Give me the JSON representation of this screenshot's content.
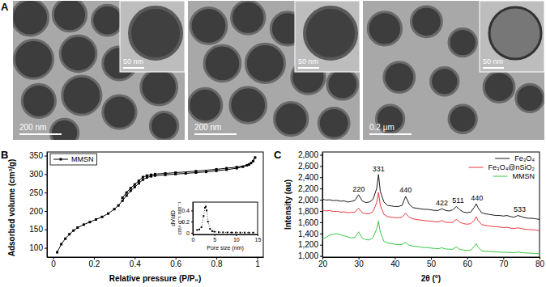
{
  "panel_labels": [
    "A",
    "B",
    "C"
  ],
  "micrographs": {
    "images": [
      {
        "scale_bar": "200 nm",
        "inset_scale_bar": "50 nm"
      },
      {
        "scale_bar": "200 nm",
        "inset_scale_bar": "50 nm"
      },
      {
        "scale_bar": "0.2 μm",
        "inset_scale_bar": "50 nm"
      }
    ]
  },
  "chart_data": [
    {
      "type": "line",
      "xlabel": "Relative pressure (P/P₀)",
      "ylabel": "Adsorbed volume (cm³/g)",
      "x": [
        0.02,
        0.04,
        0.06,
        0.08,
        0.1,
        0.12,
        0.15,
        0.18,
        0.21,
        0.24,
        0.27,
        0.3,
        0.32,
        0.34,
        0.36,
        0.38,
        0.4,
        0.42,
        0.44,
        0.46,
        0.48,
        0.5,
        0.55,
        0.6,
        0.65,
        0.7,
        0.75,
        0.8,
        0.85,
        0.9,
        0.93,
        0.96,
        0.98,
        0.99,
        0.97,
        0.95,
        0.9,
        0.85,
        0.8,
        0.7,
        0.6,
        0.55,
        0.5,
        0.48,
        0.46,
        0.44,
        0.42,
        0.4,
        0.38,
        0.36,
        0.34
      ],
      "series": [
        {
          "name": "MMSN",
          "color": "#000000",
          "marker": "square",
          "line_style": "solid",
          "values": [
            88,
            110,
            125,
            137,
            147,
            155,
            163,
            170,
            177,
            184,
            193,
            205,
            215,
            228,
            242,
            255,
            265,
            275,
            285,
            291,
            294,
            296,
            298,
            300,
            302,
            304,
            306,
            309,
            312,
            316,
            320,
            326,
            335,
            345,
            330,
            324,
            319,
            316,
            313,
            308,
            304,
            302,
            300,
            298,
            296,
            292,
            282,
            272,
            262,
            250,
            236
          ]
        }
      ],
      "xlim": [
        -0.03,
        1.03
      ],
      "ylim": [
        75,
        360
      ],
      "xticks": [
        0,
        0.2,
        0.4,
        0.6,
        0.8,
        1
      ],
      "yticks": [
        100,
        150,
        200,
        250,
        300,
        350
      ],
      "legend": "upper left",
      "grid": false
    },
    {
      "type": "line",
      "xlabel": "Pore size (nm)",
      "ylabel": [
        "dV/dD",
        "cm³ g⁻¹ nm⁻¹"
      ],
      "x": [
        1,
        1.5,
        2,
        2.5,
        2.8,
        3,
        3.2,
        3.5,
        4,
        4.5,
        5,
        6,
        7,
        8,
        9,
        10,
        11,
        12,
        13,
        14
      ],
      "series": [
        {
          "color": "#000000",
          "marker": "square",
          "line_style": "dotted",
          "values": [
            0.05,
            0.06,
            0.1,
            0.3,
            0.45,
            0.47,
            0.4,
            0.2,
            0.07,
            0.03,
            0.02,
            0.01,
            0.008,
            0.006,
            0.005,
            0.005,
            0.004,
            0.004,
            0.003,
            0.003
          ]
        }
      ],
      "xlim": [
        0,
        15
      ],
      "ylim": [
        -0.03,
        0.55
      ],
      "xticks": [
        0,
        5,
        10,
        15
      ],
      "yticks": [
        0,
        0.2,
        0.4
      ],
      "grid": false
    },
    {
      "type": "line",
      "xlabel": "2θ (°)",
      "ylabel": "Intensity (au)",
      "x": [
        20,
        21,
        22,
        23,
        24,
        25,
        26,
        27,
        28,
        29,
        30,
        31,
        32,
        33,
        34,
        35,
        35.5,
        36,
        37,
        38,
        39,
        40,
        41,
        42,
        43,
        44,
        45,
        46,
        47,
        48,
        49,
        50,
        51,
        52,
        53,
        54,
        55,
        56,
        57,
        58,
        59,
        60,
        61,
        62,
        62.5,
        63,
        64,
        65,
        66,
        67,
        68,
        69,
        70,
        71,
        72,
        73,
        74,
        75,
        76,
        77,
        78,
        79,
        80
      ],
      "series": [
        {
          "name": "Fe₃O₄",
          "color": "#1a1a1a",
          "line_style": "solid",
          "values": [
            2010,
            1995,
            2000,
            1985,
            1990,
            1975,
            1980,
            1960,
            1970,
            1990,
            2090,
            1980,
            1950,
            1960,
            2010,
            2200,
            2450,
            2150,
            1960,
            1900,
            1890,
            1880,
            1880,
            1900,
            2060,
            1920,
            1860,
            1850,
            1840,
            1830,
            1830,
            1820,
            1810,
            1810,
            1840,
            1810,
            1800,
            1820,
            1880,
            1820,
            1780,
            1770,
            1780,
            1870,
            1930,
            1860,
            1770,
            1750,
            1740,
            1730,
            1720,
            1720,
            1710,
            1720,
            1700,
            1690,
            1720,
            1700,
            1680,
            1670,
            1670,
            1660,
            1650
          ]
        },
        {
          "name": "Fe₃O₄@nSiO₂",
          "color": "#e8383d",
          "line_style": "solid",
          "values": [
            1820,
            1800,
            1810,
            1790,
            1795,
            1780,
            1785,
            1770,
            1775,
            1780,
            1850,
            1770,
            1750,
            1755,
            1790,
            1950,
            2130,
            1900,
            1740,
            1700,
            1690,
            1680,
            1680,
            1690,
            1760,
            1690,
            1660,
            1650,
            1640,
            1630,
            1625,
            1620,
            1610,
            1605,
            1630,
            1600,
            1595,
            1600,
            1650,
            1600,
            1575,
            1565,
            1575,
            1640,
            1700,
            1630,
            1560,
            1545,
            1535,
            1525,
            1520,
            1515,
            1505,
            1510,
            1495,
            1490,
            1500,
            1490,
            1475,
            1470,
            1465,
            1460,
            1450
          ]
        },
        {
          "name": "MMSN",
          "color": "#35c843",
          "line_style": "solid",
          "values": [
            1300,
            1330,
            1370,
            1390,
            1395,
            1380,
            1360,
            1340,
            1320,
            1330,
            1430,
            1320,
            1290,
            1285,
            1330,
            1480,
            1620,
            1420,
            1260,
            1230,
            1220,
            1210,
            1200,
            1205,
            1240,
            1190,
            1175,
            1170,
            1160,
            1150,
            1150,
            1140,
            1135,
            1130,
            1145,
            1125,
            1120,
            1120,
            1160,
            1115,
            1105,
            1100,
            1105,
            1170,
            1220,
            1160,
            1090,
            1085,
            1080,
            1075,
            1070,
            1070,
            1065,
            1065,
            1060,
            1060,
            1070,
            1060,
            1055,
            1050,
            1050,
            1045,
            1040
          ]
        }
      ],
      "xlim": [
        20,
        80
      ],
      "ylim": [
        980,
        2850
      ],
      "xticks": [
        20,
        30,
        40,
        50,
        60,
        70,
        80
      ],
      "yticks": [
        {
          "value": 1000,
          "label": "1,000"
        },
        {
          "value": 1200,
          "label": "1,200"
        },
        {
          "value": 1400,
          "label": "1,400"
        },
        {
          "value": 1600,
          "label": "1,600"
        },
        {
          "value": 1800,
          "label": "1,800"
        },
        {
          "value": 2000,
          "label": "2,000"
        },
        {
          "value": 2200,
          "label": "2,200"
        },
        {
          "value": 2400,
          "label": "2,400"
        },
        {
          "value": 2600,
          "label": "2,600"
        },
        {
          "value": 2800,
          "label": "2,800"
        }
      ],
      "annotations": [
        {
          "text": "220",
          "x": 30,
          "y": 2150
        },
        {
          "text": "331",
          "x": 35.5,
          "y": 2500
        },
        {
          "text": "440",
          "x": 43,
          "y": 2130
        },
        {
          "text": "422",
          "x": 53,
          "y": 1900
        },
        {
          "text": "511",
          "x": 57.5,
          "y": 1940
        },
        {
          "text": "440",
          "x": 62.7,
          "y": 1990
        },
        {
          "text": "533",
          "x": 74.5,
          "y": 1790
        }
      ],
      "legend": "upper right",
      "grid": false
    }
  ]
}
